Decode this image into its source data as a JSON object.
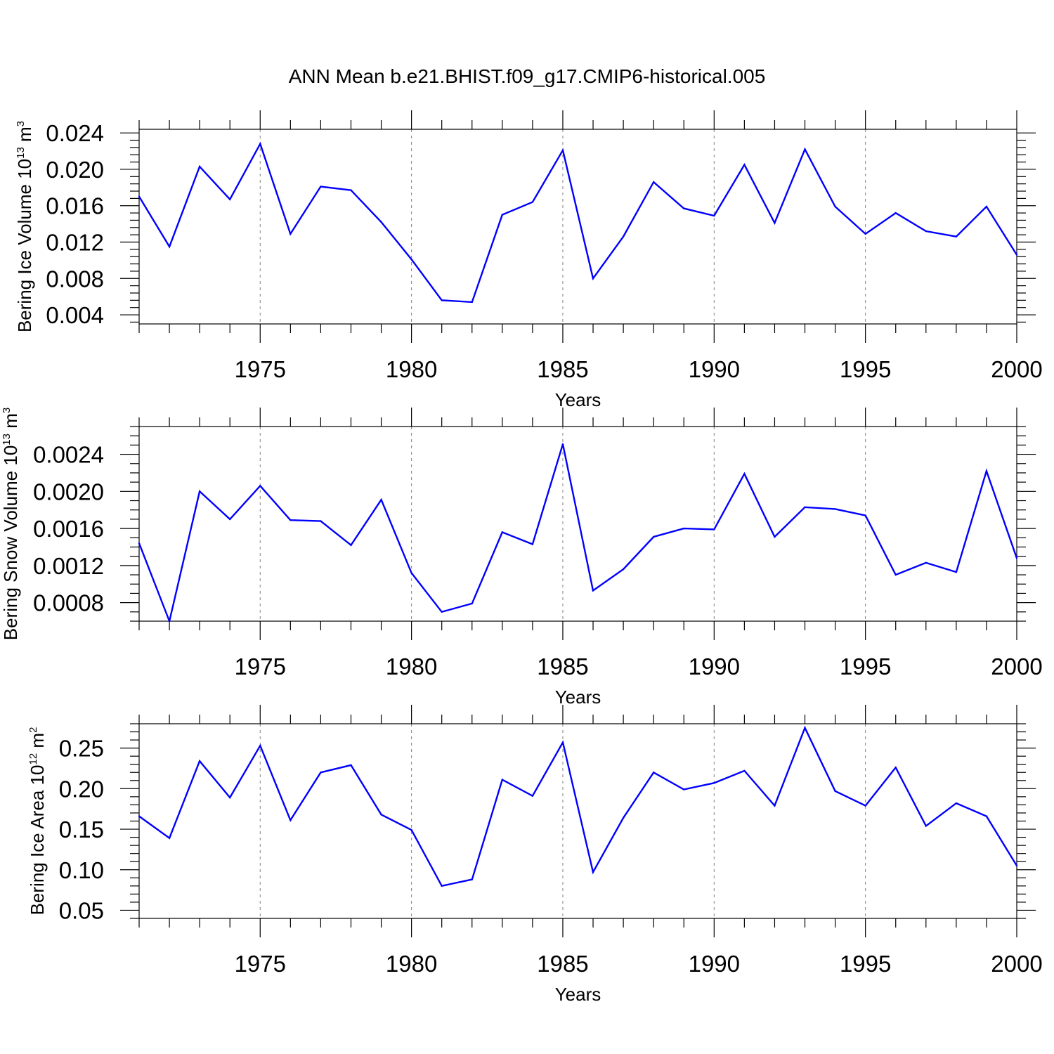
{
  "title": "ANN Mean b.e21.BHIST.f09_g17.CMIP6-historical.005",
  "colors": {
    "line": "#0000ff",
    "axis": "#000000",
    "grid": "#808080"
  },
  "chart_data": [
    {
      "type": "line",
      "name": "ice-volume",
      "ylabel": {
        "text": "Bering Ice Volume 10",
        "exp": "13",
        "unit": " m",
        "unit_exp": "3"
      },
      "xlabel": "Years",
      "xlim": [
        1971,
        2000
      ],
      "ylim": [
        0.003,
        0.0244
      ],
      "yticks": [
        0.004,
        0.008,
        0.012,
        0.016,
        0.02,
        0.024
      ],
      "ytick_labels": [
        "0.004",
        "0.008",
        "0.012",
        "0.016",
        "0.020",
        "0.024"
      ],
      "yminor_step": 0.0008,
      "xticks": [
        1975,
        1980,
        1985,
        1990,
        1995,
        2000
      ],
      "xtick_labels": [
        "1975",
        "1980",
        "1985",
        "1990",
        "1995",
        "2000"
      ],
      "grid": "vertical dashed at major x ticks",
      "x": [
        1971,
        1972,
        1973,
        1974,
        1975,
        1976,
        1977,
        1978,
        1979,
        1980,
        1981,
        1982,
        1983,
        1984,
        1985,
        1986,
        1987,
        1988,
        1989,
        1990,
        1991,
        1992,
        1993,
        1994,
        1995,
        1996,
        1997,
        1998,
        1999,
        2000
      ],
      "y": [
        0.017,
        0.0115,
        0.0203,
        0.0167,
        0.0228,
        0.0129,
        0.0181,
        0.0177,
        0.0142,
        0.0101,
        0.0056,
        0.0054,
        0.015,
        0.0164,
        0.0221,
        0.008,
        0.0126,
        0.0186,
        0.0157,
        0.0149,
        0.0205,
        0.0141,
        0.0222,
        0.0159,
        0.0129,
        0.0152,
        0.0132,
        0.0126,
        0.0159,
        0.0106
      ]
    },
    {
      "type": "line",
      "name": "snow-volume",
      "ylabel": {
        "text": "Bering Snow Volume 10",
        "exp": "13",
        "unit": " m",
        "unit_exp": "3"
      },
      "xlabel": "Years",
      "xlim": [
        1971,
        2000
      ],
      "ylim": [
        0.0006,
        0.0027
      ],
      "yticks": [
        0.0008,
        0.0012,
        0.0016,
        0.002,
        0.0024
      ],
      "ytick_labels": [
        "0.0008",
        "0.0012",
        "0.0016",
        "0.0020",
        "0.0024"
      ],
      "yminor_step": 0.0001,
      "xticks": [
        1975,
        1980,
        1985,
        1990,
        1995,
        2000
      ],
      "xtick_labels": [
        "1975",
        "1980",
        "1985",
        "1990",
        "1995",
        "2000"
      ],
      "grid": "vertical dashed at major x ticks",
      "x": [
        1971,
        1972,
        1973,
        1974,
        1975,
        1976,
        1977,
        1978,
        1979,
        1980,
        1981,
        1982,
        1983,
        1984,
        1985,
        1986,
        1987,
        1988,
        1989,
        1990,
        1991,
        1992,
        1993,
        1994,
        1995,
        1996,
        1997,
        1998,
        1999,
        2000
      ],
      "y": [
        0.00144,
        0.0006,
        0.002,
        0.0017,
        0.00206,
        0.00169,
        0.00168,
        0.00142,
        0.00191,
        0.00112,
        0.0007,
        0.00079,
        0.00156,
        0.00143,
        0.00251,
        0.00093,
        0.00116,
        0.00151,
        0.0016,
        0.00159,
        0.00219,
        0.00151,
        0.00183,
        0.00181,
        0.00174,
        0.0011,
        0.00123,
        0.00113,
        0.00222,
        0.00128
      ]
    },
    {
      "type": "line",
      "name": "ice-area",
      "ylabel": {
        "text": "Bering Ice Area 10",
        "exp": "12",
        "unit": " m",
        "unit_exp": "2"
      },
      "xlabel": "Years",
      "xlim": [
        1971,
        2000
      ],
      "ylim": [
        0.04,
        0.28
      ],
      "yticks": [
        0.05,
        0.1,
        0.15,
        0.2,
        0.25
      ],
      "ytick_labels": [
        "0.05",
        "0.10",
        "0.15",
        "0.20",
        "0.25"
      ],
      "yminor_step": 0.01,
      "xticks": [
        1975,
        1980,
        1985,
        1990,
        1995,
        2000
      ],
      "xtick_labels": [
        "1975",
        "1980",
        "1985",
        "1990",
        "1995",
        "2000"
      ],
      "grid": "vertical dashed at major x ticks",
      "x": [
        1971,
        1972,
        1973,
        1974,
        1975,
        1976,
        1977,
        1978,
        1979,
        1980,
        1981,
        1982,
        1983,
        1984,
        1985,
        1986,
        1987,
        1988,
        1989,
        1990,
        1991,
        1992,
        1993,
        1994,
        1995,
        1996,
        1997,
        1998,
        1999,
        2000
      ],
      "y": [
        0.166,
        0.139,
        0.234,
        0.189,
        0.253,
        0.161,
        0.22,
        0.229,
        0.168,
        0.149,
        0.08,
        0.088,
        0.211,
        0.191,
        0.257,
        0.097,
        0.164,
        0.22,
        0.199,
        0.207,
        0.222,
        0.179,
        0.275,
        0.197,
        0.179,
        0.226,
        0.154,
        0.182,
        0.166,
        0.105
      ]
    }
  ]
}
